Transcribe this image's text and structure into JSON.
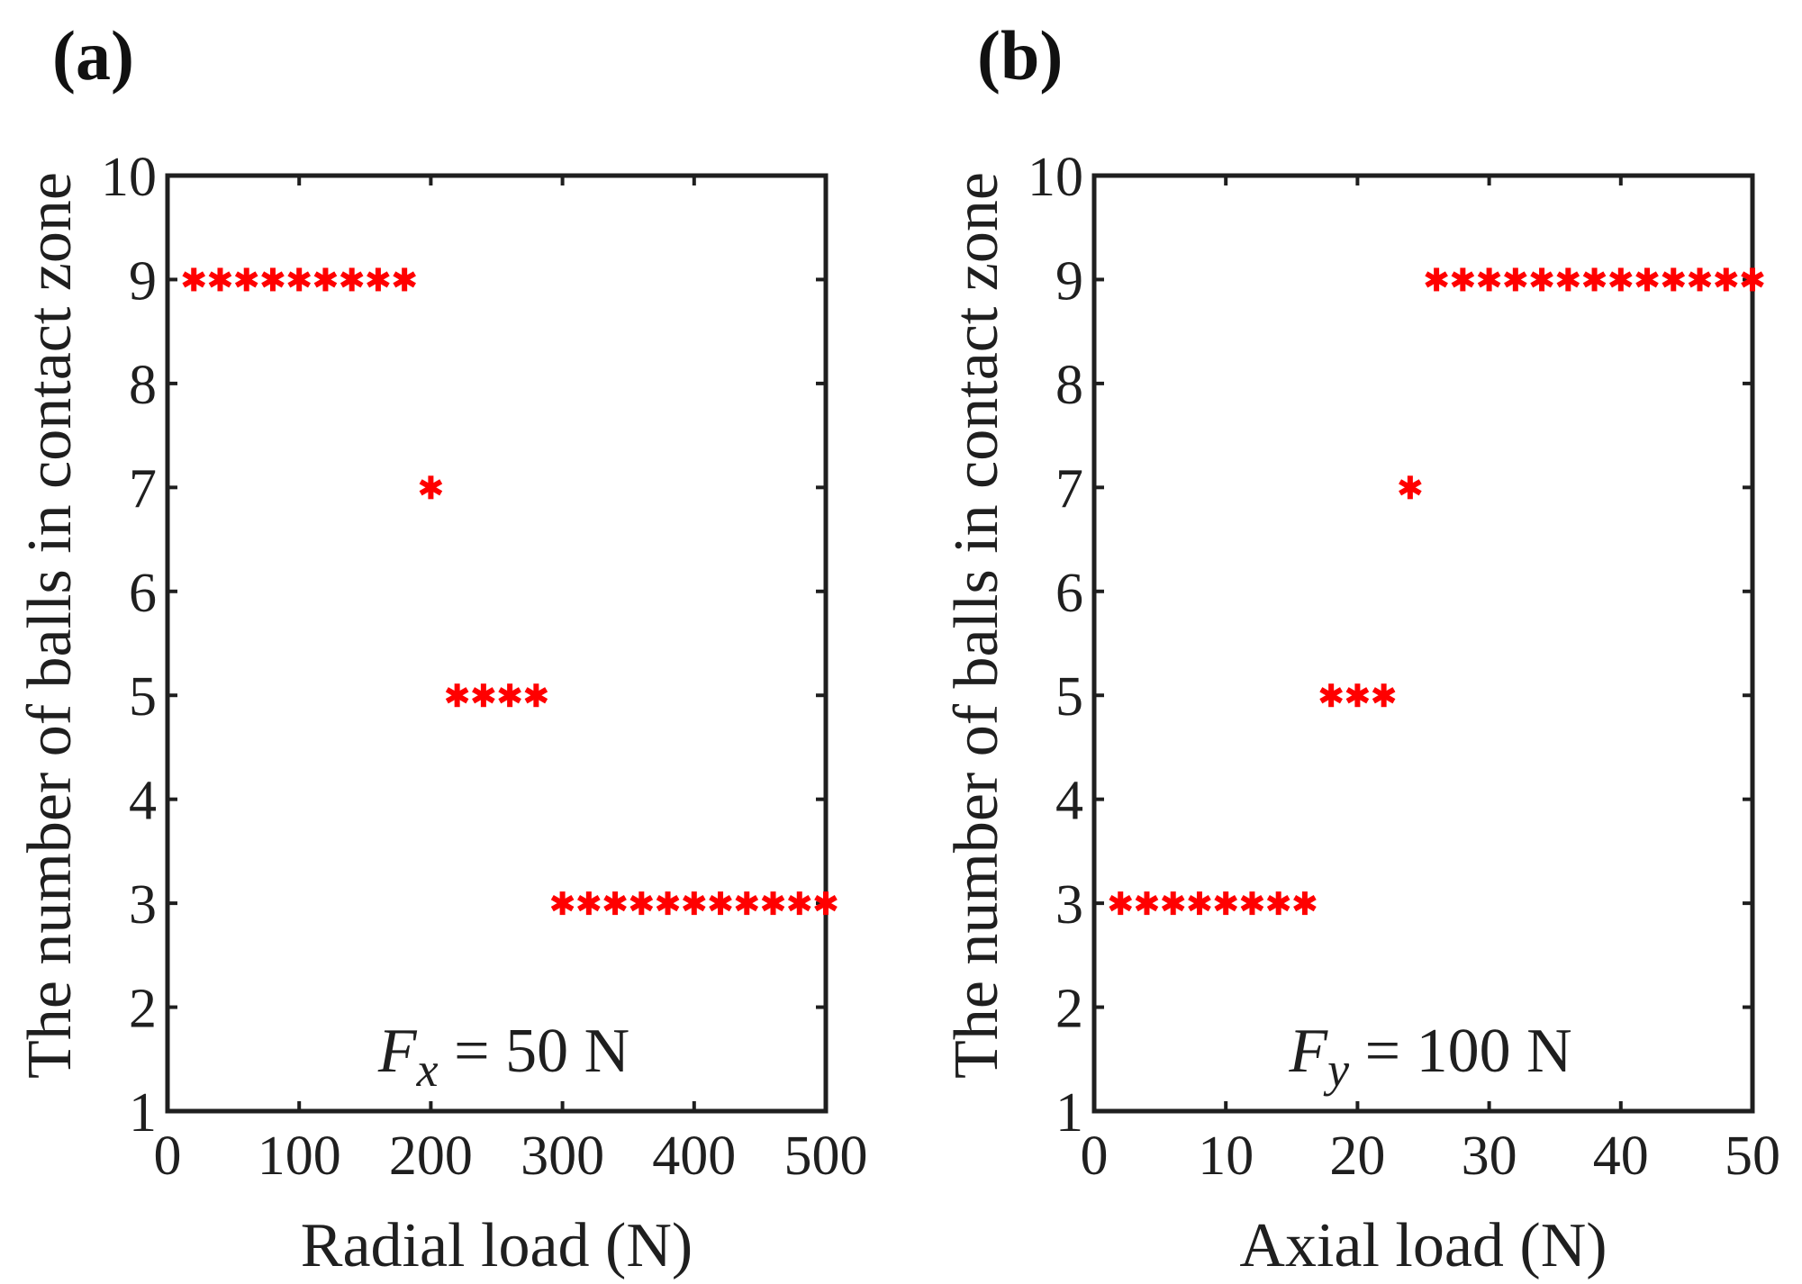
{
  "colors": {
    "marker": "#ff0000",
    "axis": "#1f1f1f"
  },
  "chart_data": [
    {
      "panel_label": "(a)",
      "type": "scatter",
      "marker": "asterisk",
      "xlabel": "Radial load (N)",
      "ylabel": "The  number of balls in contact zone",
      "annotation": {
        "var": "F",
        "sub": "x",
        "rest": " = 50 N"
      },
      "xlim": [
        0,
        500
      ],
      "ylim": [
        1,
        10
      ],
      "xticks": [
        0,
        100,
        200,
        300,
        400,
        500
      ],
      "yticks": [
        1,
        2,
        3,
        4,
        5,
        6,
        7,
        8,
        9,
        10
      ],
      "x": [
        20,
        40,
        60,
        80,
        100,
        120,
        140,
        160,
        180,
        200,
        220,
        240,
        260,
        280,
        300,
        320,
        340,
        360,
        380,
        400,
        420,
        440,
        460,
        480,
        500
      ],
      "y": [
        9,
        9,
        9,
        9,
        9,
        9,
        9,
        9,
        9,
        7,
        5,
        5,
        5,
        5,
        3,
        3,
        3,
        3,
        3,
        3,
        3,
        3,
        3,
        3,
        3
      ]
    },
    {
      "panel_label": "(b)",
      "type": "scatter",
      "marker": "asterisk",
      "xlabel": "Axial load (N)",
      "ylabel": "The  number of balls in contact zone",
      "annotation": {
        "var": "F",
        "sub": "y",
        "rest": " = 100 N"
      },
      "xlim": [
        0,
        50
      ],
      "ylim": [
        1,
        10
      ],
      "xticks": [
        0,
        10,
        20,
        30,
        40,
        50
      ],
      "yticks": [
        1,
        2,
        3,
        4,
        5,
        6,
        7,
        8,
        9,
        10
      ],
      "x": [
        2,
        4,
        6,
        8,
        10,
        12,
        14,
        16,
        18,
        20,
        22,
        24,
        26,
        28,
        30,
        32,
        34,
        36,
        38,
        40,
        42,
        44,
        46,
        48,
        50
      ],
      "y": [
        3,
        3,
        3,
        3,
        3,
        3,
        3,
        3,
        5,
        5,
        5,
        7,
        9,
        9,
        9,
        9,
        9,
        9,
        9,
        9,
        9,
        9,
        9,
        9,
        9
      ]
    }
  ]
}
